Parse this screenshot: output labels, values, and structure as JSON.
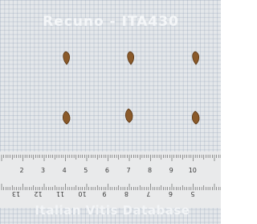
{
  "header": {
    "title": "Recuno - ITA430"
  },
  "ruler": {
    "top_labels": [
      "2",
      "3",
      "4",
      "5",
      "6",
      "7",
      "8",
      "9",
      "10"
    ],
    "bottom_labels": [
      "13",
      "12",
      "11",
      "10",
      "9",
      "8",
      "7",
      "6",
      "5"
    ]
  },
  "footer": {
    "watermark": "Italian Vitis Database"
  }
}
